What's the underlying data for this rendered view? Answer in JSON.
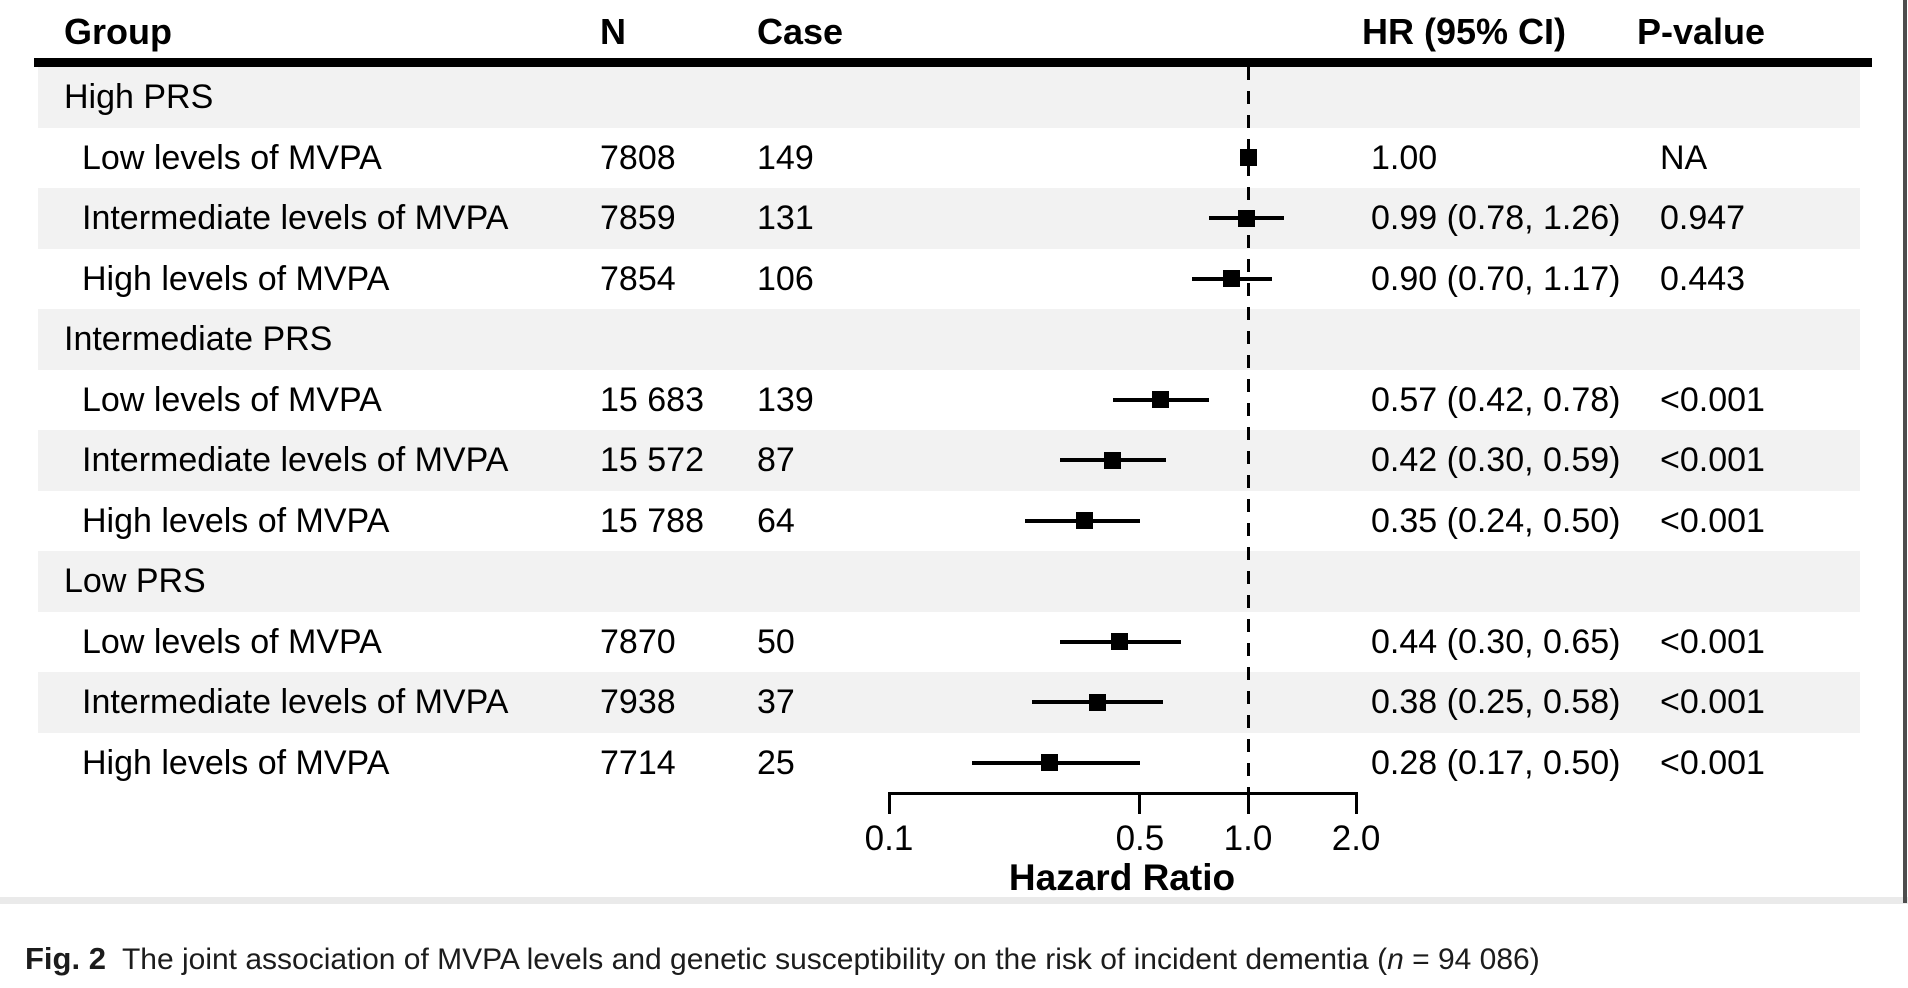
{
  "chart_data": {
    "type": "forest",
    "title": "",
    "xlabel": "Hazard Ratio",
    "xscale": "log10",
    "xlim": [
      0.1,
      2.0
    ],
    "xticks": [
      0.1,
      0.5,
      1.0,
      2.0
    ],
    "xtick_labels": [
      "0.1",
      "0.5",
      "1.0",
      "2.0"
    ],
    "reference_line": 1.0,
    "legend": "none",
    "grid": false,
    "columns": [
      "Group",
      "N",
      "Case",
      "HR (95% CI)",
      "P-value"
    ],
    "rows": [
      {
        "type": "group",
        "label": "High PRS"
      },
      {
        "type": "item",
        "label": "Low levels of MVPA",
        "n": "7808",
        "case": "149",
        "hr": 1.0,
        "ci_low": null,
        "ci_high": null,
        "hr_text": "1.00",
        "p": "NA"
      },
      {
        "type": "item",
        "label": "Intermediate levels of MVPA",
        "n": "7859",
        "case": "131",
        "hr": 0.99,
        "ci_low": 0.78,
        "ci_high": 1.26,
        "hr_text": "0.99 (0.78, 1.26)",
        "p": "0.947"
      },
      {
        "type": "item",
        "label": "High levels of MVPA",
        "n": "7854",
        "case": "106",
        "hr": 0.9,
        "ci_low": 0.7,
        "ci_high": 1.17,
        "hr_text": "0.90 (0.70, 1.17)",
        "p": "0.443"
      },
      {
        "type": "group",
        "label": "Intermediate PRS"
      },
      {
        "type": "item",
        "label": "Low levels of MVPA",
        "n": "15 683",
        "case": "139",
        "hr": 0.57,
        "ci_low": 0.42,
        "ci_high": 0.78,
        "hr_text": "0.57 (0.42, 0.78)",
        "p": "<0.001"
      },
      {
        "type": "item",
        "label": "Intermediate levels of MVPA",
        "n": "15 572",
        "case": "87",
        "hr": 0.42,
        "ci_low": 0.3,
        "ci_high": 0.59,
        "hr_text": "0.42 (0.30, 0.59)",
        "p": "<0.001"
      },
      {
        "type": "item",
        "label": "High levels of MVPA",
        "n": "15 788",
        "case": "64",
        "hr": 0.35,
        "ci_low": 0.24,
        "ci_high": 0.5,
        "hr_text": "0.35 (0.24, 0.50)",
        "p": "<0.001"
      },
      {
        "type": "group",
        "label": "Low PRS"
      },
      {
        "type": "item",
        "label": "Low levels of MVPA",
        "n": "7870",
        "case": "50",
        "hr": 0.44,
        "ci_low": 0.3,
        "ci_high": 0.65,
        "hr_text": "0.44 (0.30, 0.65)",
        "p": "<0.001"
      },
      {
        "type": "item",
        "label": "Intermediate levels of MVPA",
        "n": "7938",
        "case": "37",
        "hr": 0.38,
        "ci_low": 0.25,
        "ci_high": 0.58,
        "hr_text": "0.38 (0.25, 0.58)",
        "p": "<0.001"
      },
      {
        "type": "item",
        "label": "High levels of MVPA",
        "n": "7714",
        "case": "25",
        "hr": 0.28,
        "ci_low": 0.17,
        "ci_high": 0.5,
        "hr_text": "0.28 (0.17, 0.50)",
        "p": "<0.001"
      }
    ]
  },
  "caption": {
    "fig_label": "Fig. 2",
    "text": "The joint association of MVPA levels and genetic susceptibility on the risk of incident dementia (",
    "n_var": "n",
    "n_tail": " = 94 086)"
  },
  "colors": {
    "text": "#000000",
    "row_band": "#f2f2f2",
    "marker": "#000000",
    "reference_line": "#000000",
    "bottom_strip": "#eaeaea"
  }
}
